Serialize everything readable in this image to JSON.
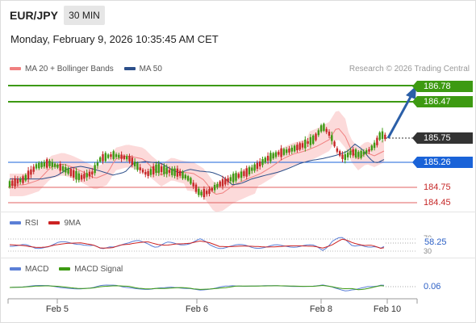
{
  "header": {
    "symbol": "EUR/JPY",
    "timeframe": "30 MIN",
    "datetime": "Monday, February 9, 2026 10:35:45 AM CET"
  },
  "legend_main": {
    "ma20_label": "MA 20 + Bollinger Bands",
    "ma50_label": "MA 50",
    "credit": "Research © 2026 Trading Central"
  },
  "colors": {
    "ma20": "#f08080",
    "ma50": "#2c4f8a",
    "bollinger_fill": "#fbd3d3",
    "resistance": "#3d9a12",
    "support_line": "#1a63d8",
    "support_red": "#e06060",
    "up_candle": "#3d9a12",
    "down_candle": "#c62828",
    "rsi": "#5b7fd6",
    "rsi_ma": "#cc2222",
    "macd": "#5b7fd6",
    "macd_signal": "#3d9a12"
  },
  "price_levels": {
    "target2": "186.78",
    "target1": "186.47",
    "current": "185.75",
    "pivot": "185.26",
    "support1": "184.75",
    "support2": "184.45"
  },
  "rsi": {
    "label": "RSI",
    "ma_label": "9MA",
    "value": "58.25",
    "tick_70": "70",
    "tick_30": "30"
  },
  "macd": {
    "label": "MACD",
    "signal_label": "MACD Signal",
    "value": "0.06"
  },
  "x_axis": {
    "labels": [
      "Feb 5",
      "Feb 6",
      "Feb 8",
      "Feb 10"
    ]
  }
}
